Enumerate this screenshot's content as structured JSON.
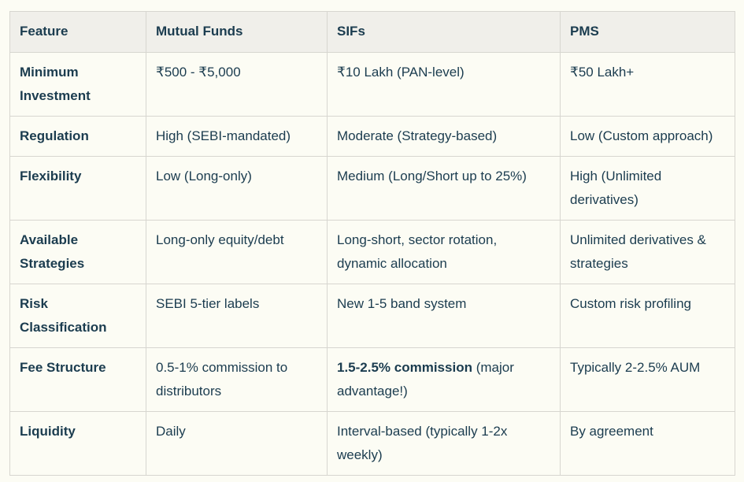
{
  "table": {
    "columns": [
      "Feature",
      "Mutual Funds",
      "SIFs",
      "PMS"
    ],
    "rows": [
      {
        "cells": [
          "Minimum Investment",
          "₹500 - ₹5,000",
          "₹10 Lakh (PAN-level)",
          "₹50 Lakh+"
        ]
      },
      {
        "cells": [
          "Regulation",
          "High (SEBI-mandated)",
          "Moderate (Strategy-based)",
          "Low (Custom approach)"
        ]
      },
      {
        "cells": [
          "Flexibility",
          "Low (Long-only)",
          "Medium (Long/Short up to 25%)",
          "High (Unlimited derivatives)"
        ]
      },
      {
        "cells": [
          "Available Strategies",
          "Long-only equity/debt",
          "Long-short, sector rotation, dynamic allocation",
          "Unlimited derivatives & strategies"
        ]
      },
      {
        "cells": [
          "Risk Classification",
          "SEBI 5-tier labels",
          "New 1-5 band system",
          "Custom risk profiling"
        ]
      },
      {
        "cells": [
          "Fee Structure",
          "0.5-1% commission to distributors",
          {
            "bold": "1.5-2.5% commission",
            "rest": " (major advantage!)"
          },
          "Typically 2-2.5% AUM"
        ]
      },
      {
        "cells": [
          "Liquidity",
          "Daily",
          "Interval-based (typically 1-2x weekly)",
          "By agreement"
        ]
      }
    ],
    "colors": {
      "text": "#1B3C4F",
      "header_bg": "#F0EFEA",
      "cell_bg": "#FCFCF4",
      "border": "#D7D6D0",
      "page_bg": "#FCFCF4"
    }
  }
}
